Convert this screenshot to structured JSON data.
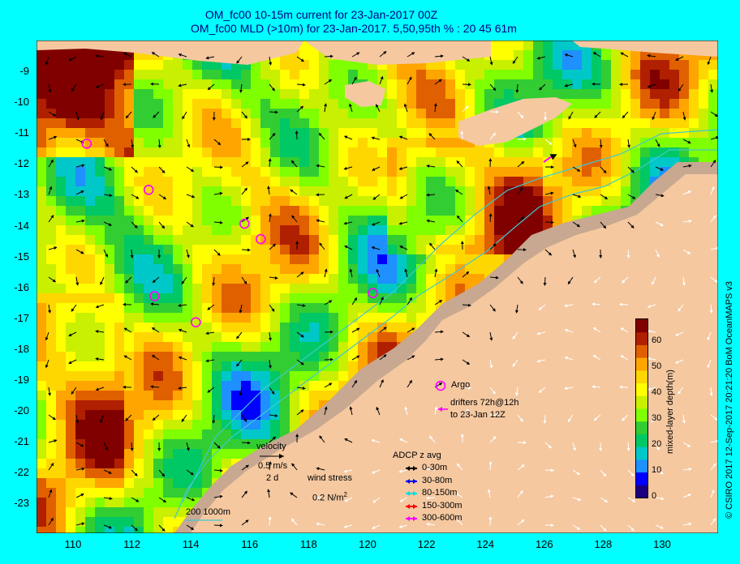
{
  "titles": {
    "line1": "OM_fc00 10-15m current for 23-Jan-2017 00Z",
    "line2": "OM_fc00 MLD (>10m) for 23-Jan-2017. 5,50,95th % : 20  45  61m"
  },
  "axes": {
    "lat_ticks": [
      "-9",
      "-10",
      "-11",
      "-12",
      "-13",
      "-14",
      "-15",
      "-16",
      "-17",
      "-18",
      "-19",
      "-20",
      "-21",
      "-22",
      "-23"
    ],
    "lon_ticks": [
      "110",
      "112",
      "114",
      "116",
      "118",
      "120",
      "122",
      "124",
      "126",
      "128",
      "130"
    ]
  },
  "colorbar": {
    "title": "mixed-layer depth(m)",
    "ticks": [
      "60",
      "50",
      "40",
      "30",
      "20",
      "10",
      "0"
    ],
    "colors": [
      "#1a0080",
      "#0000ff",
      "#1e90ff",
      "#00c8c8",
      "#00c864",
      "#32cd32",
      "#7fff00",
      "#c8f000",
      "#ffff00",
      "#ffd700",
      "#ffa500",
      "#e06000",
      "#b02000",
      "#800000"
    ]
  },
  "legend": {
    "velocity_label": "velocity",
    "velocity_scale": "0.5 m/s",
    "velocity_time": "2 d",
    "wind_label": "wind stress",
    "wind_scale": "0.2 N/m",
    "wind_sup": "2",
    "isobaths": "200  1000m",
    "argo_label": "Argo",
    "drifters_line1": "drifters 72h@12h",
    "drifters_line2": "to 23-Jan 12Z",
    "adcp_title": "ADCP z avg",
    "adcp_items": [
      {
        "label": "0-30m",
        "color": "#000000"
      },
      {
        "label": "30-80m",
        "color": "#0000ff"
      },
      {
        "label": "80-150m",
        "color": "#00e0e0"
      },
      {
        "label": "150-300m",
        "color": "#ff0000"
      },
      {
        "label": "300-600m",
        "color": "#ff00ff"
      }
    ]
  },
  "credit": "© CSIRO 2017   12-Sep-2017 20:21:20 BoM OceanMAPS v3",
  "argo_floats": [
    {
      "lon": 110.7,
      "lat": -11.35
    },
    {
      "lon": 112.8,
      "lat": -12.85
    },
    {
      "lon": 116.05,
      "lat": -13.95
    },
    {
      "lon": 116.6,
      "lat": -14.45
    },
    {
      "lon": 113.0,
      "lat": -16.3
    },
    {
      "lon": 114.4,
      "lat": -17.15
    },
    {
      "lon": 120.4,
      "lat": -16.2
    }
  ],
  "colors": {
    "land": "#f5c8a0",
    "shelf": "#c8a890",
    "frame": "#00ffff",
    "title": "#000080"
  }
}
